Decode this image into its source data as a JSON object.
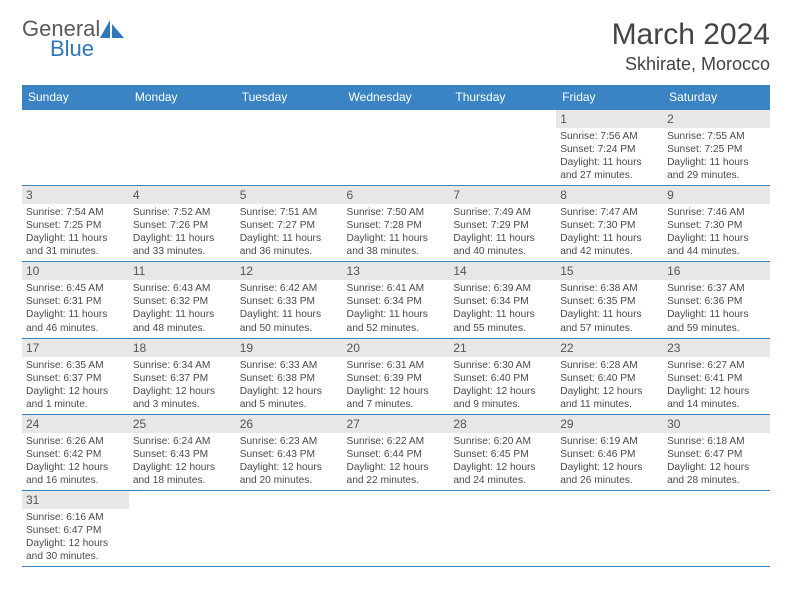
{
  "brand": {
    "part1": "General",
    "part2": "Blue"
  },
  "title": "March 2024",
  "location": "Skhirate, Morocco",
  "colors": {
    "header_bg": "#3a84c4",
    "header_fg": "#ffffff",
    "daynum_bg": "#e7e7e7",
    "border": "#3a84c4",
    "text": "#4a4a4a",
    "brand_gray": "#5a5a5a",
    "brand_blue": "#2f77b8"
  },
  "typography": {
    "title_fontsize": 30,
    "location_fontsize": 18,
    "dayheader_fontsize": 12,
    "daynum_fontsize": 12,
    "body_fontsize": 10.2
  },
  "day_headers": [
    "Sunday",
    "Monday",
    "Tuesday",
    "Wednesday",
    "Thursday",
    "Friday",
    "Saturday"
  ],
  "weeks": [
    [
      null,
      null,
      null,
      null,
      null,
      {
        "n": "1",
        "sr": "7:56 AM",
        "ss": "7:24 PM",
        "dl": "11 hours and 27 minutes."
      },
      {
        "n": "2",
        "sr": "7:55 AM",
        "ss": "7:25 PM",
        "dl": "11 hours and 29 minutes."
      }
    ],
    [
      {
        "n": "3",
        "sr": "7:54 AM",
        "ss": "7:25 PM",
        "dl": "11 hours and 31 minutes."
      },
      {
        "n": "4",
        "sr": "7:52 AM",
        "ss": "7:26 PM",
        "dl": "11 hours and 33 minutes."
      },
      {
        "n": "5",
        "sr": "7:51 AM",
        "ss": "7:27 PM",
        "dl": "11 hours and 36 minutes."
      },
      {
        "n": "6",
        "sr": "7:50 AM",
        "ss": "7:28 PM",
        "dl": "11 hours and 38 minutes."
      },
      {
        "n": "7",
        "sr": "7:49 AM",
        "ss": "7:29 PM",
        "dl": "11 hours and 40 minutes."
      },
      {
        "n": "8",
        "sr": "7:47 AM",
        "ss": "7:30 PM",
        "dl": "11 hours and 42 minutes."
      },
      {
        "n": "9",
        "sr": "7:46 AM",
        "ss": "7:30 PM",
        "dl": "11 hours and 44 minutes."
      }
    ],
    [
      {
        "n": "10",
        "sr": "6:45 AM",
        "ss": "6:31 PM",
        "dl": "11 hours and 46 minutes."
      },
      {
        "n": "11",
        "sr": "6:43 AM",
        "ss": "6:32 PM",
        "dl": "11 hours and 48 minutes."
      },
      {
        "n": "12",
        "sr": "6:42 AM",
        "ss": "6:33 PM",
        "dl": "11 hours and 50 minutes."
      },
      {
        "n": "13",
        "sr": "6:41 AM",
        "ss": "6:34 PM",
        "dl": "11 hours and 52 minutes."
      },
      {
        "n": "14",
        "sr": "6:39 AM",
        "ss": "6:34 PM",
        "dl": "11 hours and 55 minutes."
      },
      {
        "n": "15",
        "sr": "6:38 AM",
        "ss": "6:35 PM",
        "dl": "11 hours and 57 minutes."
      },
      {
        "n": "16",
        "sr": "6:37 AM",
        "ss": "6:36 PM",
        "dl": "11 hours and 59 minutes."
      }
    ],
    [
      {
        "n": "17",
        "sr": "6:35 AM",
        "ss": "6:37 PM",
        "dl": "12 hours and 1 minute."
      },
      {
        "n": "18",
        "sr": "6:34 AM",
        "ss": "6:37 PM",
        "dl": "12 hours and 3 minutes."
      },
      {
        "n": "19",
        "sr": "6:33 AM",
        "ss": "6:38 PM",
        "dl": "12 hours and 5 minutes."
      },
      {
        "n": "20",
        "sr": "6:31 AM",
        "ss": "6:39 PM",
        "dl": "12 hours and 7 minutes."
      },
      {
        "n": "21",
        "sr": "6:30 AM",
        "ss": "6:40 PM",
        "dl": "12 hours and 9 minutes."
      },
      {
        "n": "22",
        "sr": "6:28 AM",
        "ss": "6:40 PM",
        "dl": "12 hours and 11 minutes."
      },
      {
        "n": "23",
        "sr": "6:27 AM",
        "ss": "6:41 PM",
        "dl": "12 hours and 14 minutes."
      }
    ],
    [
      {
        "n": "24",
        "sr": "6:26 AM",
        "ss": "6:42 PM",
        "dl": "12 hours and 16 minutes."
      },
      {
        "n": "25",
        "sr": "6:24 AM",
        "ss": "6:43 PM",
        "dl": "12 hours and 18 minutes."
      },
      {
        "n": "26",
        "sr": "6:23 AM",
        "ss": "6:43 PM",
        "dl": "12 hours and 20 minutes."
      },
      {
        "n": "27",
        "sr": "6:22 AM",
        "ss": "6:44 PM",
        "dl": "12 hours and 22 minutes."
      },
      {
        "n": "28",
        "sr": "6:20 AM",
        "ss": "6:45 PM",
        "dl": "12 hours and 24 minutes."
      },
      {
        "n": "29",
        "sr": "6:19 AM",
        "ss": "6:46 PM",
        "dl": "12 hours and 26 minutes."
      },
      {
        "n": "30",
        "sr": "6:18 AM",
        "ss": "6:47 PM",
        "dl": "12 hours and 28 minutes."
      }
    ],
    [
      {
        "n": "31",
        "sr": "6:16 AM",
        "ss": "6:47 PM",
        "dl": "12 hours and 30 minutes."
      },
      null,
      null,
      null,
      null,
      null,
      null
    ]
  ],
  "labels": {
    "sunrise": "Sunrise:",
    "sunset": "Sunset:",
    "daylight": "Daylight:"
  }
}
